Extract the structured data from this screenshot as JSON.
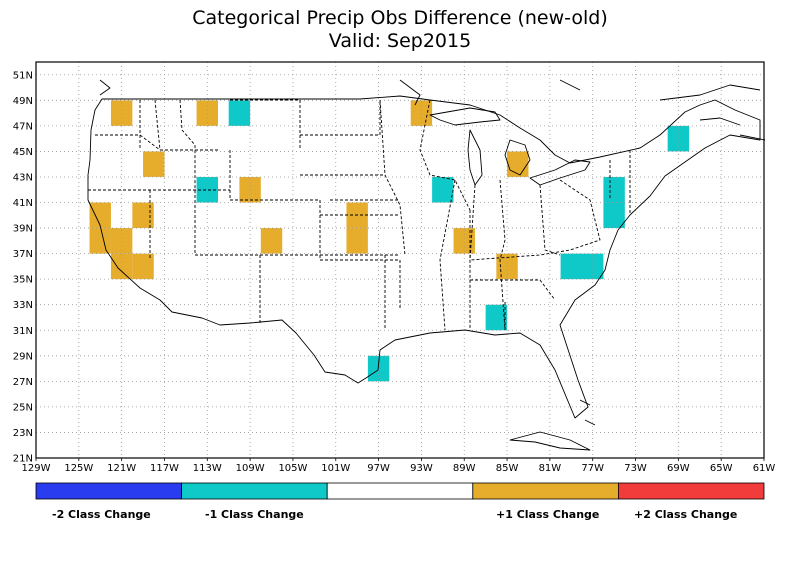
{
  "title": "Categorical Precip Obs Difference (new-old)",
  "subtitle": "Valid: Sep2015",
  "map": {
    "lon_range": [
      -129,
      -61
    ],
    "lat_range": [
      21,
      52
    ],
    "lon_ticks": [
      -129,
      -125,
      -121,
      -117,
      -113,
      -109,
      -105,
      -101,
      -97,
      -93,
      -89,
      -85,
      -81,
      -77,
      -73,
      -69,
      -65,
      -61
    ],
    "lat_ticks": [
      21,
      23,
      25,
      27,
      29,
      31,
      33,
      35,
      37,
      39,
      41,
      43,
      45,
      47,
      49,
      51
    ],
    "lon_tick_labels": [
      "129W",
      "125W",
      "121W",
      "117W",
      "113W",
      "109W",
      "105W",
      "101W",
      "97W",
      "93W",
      "89W",
      "85W",
      "81W",
      "77W",
      "73W",
      "69W",
      "65W",
      "61W"
    ],
    "lat_tick_labels": [
      "21N",
      "23N",
      "25N",
      "27N",
      "29N",
      "31N",
      "33N",
      "35N",
      "37N",
      "39N",
      "41N",
      "43N",
      "45N",
      "47N",
      "49N",
      "51N"
    ],
    "grid": true
  },
  "colors": {
    "minus2": "#2a3cf0",
    "minus1": "#0fc9c9",
    "none": "#ffffff",
    "plus1": "#e6ad2c",
    "plus2": "#f23b3b",
    "outline": "#000000"
  },
  "legend": {
    "minus2": "-2 Class Change",
    "minus1": "-1 Class Change",
    "plus1": "+1 Class Change",
    "plus2": "+2 Class Change"
  },
  "cells": [
    {
      "lon": -122,
      "lat": 47,
      "cls": 1
    },
    {
      "lon": -114,
      "lat": 47,
      "cls": 1
    },
    {
      "lon": -111,
      "lat": 47,
      "cls": -1
    },
    {
      "lon": -94,
      "lat": 47,
      "cls": 1
    },
    {
      "lon": -70,
      "lat": 45,
      "cls": -1
    },
    {
      "lon": -119,
      "lat": 43,
      "cls": 1
    },
    {
      "lon": -85,
      "lat": 43,
      "cls": 1
    },
    {
      "lon": -114,
      "lat": 41,
      "cls": -1
    },
    {
      "lon": -110,
      "lat": 41,
      "cls": 1
    },
    {
      "lon": -92,
      "lat": 41,
      "cls": -1
    },
    {
      "lon": -76,
      "lat": 41,
      "cls": -1
    },
    {
      "lon": -124,
      "lat": 39,
      "cls": 1
    },
    {
      "lon": -120,
      "lat": 39,
      "cls": 1
    },
    {
      "lon": -100,
      "lat": 39,
      "cls": 1
    },
    {
      "lon": -76,
      "lat": 39,
      "cls": -1
    },
    {
      "lon": -124,
      "lat": 37,
      "cls": 1
    },
    {
      "lon": -122,
      "lat": 37,
      "cls": 1
    },
    {
      "lon": -108,
      "lat": 37,
      "cls": 1
    },
    {
      "lon": -100,
      "lat": 37,
      "cls": 1
    },
    {
      "lon": -90,
      "lat": 37,
      "cls": 1
    },
    {
      "lon": -122,
      "lat": 35,
      "cls": 1
    },
    {
      "lon": -120,
      "lat": 35,
      "cls": 1
    },
    {
      "lon": -86,
      "lat": 35,
      "cls": 1
    },
    {
      "lon": -80,
      "lat": 35,
      "cls": -1
    },
    {
      "lon": -78,
      "lat": 35,
      "cls": -1
    },
    {
      "lon": -87,
      "lat": 31,
      "cls": -1
    },
    {
      "lon": -98,
      "lat": 27,
      "cls": -1
    }
  ]
}
